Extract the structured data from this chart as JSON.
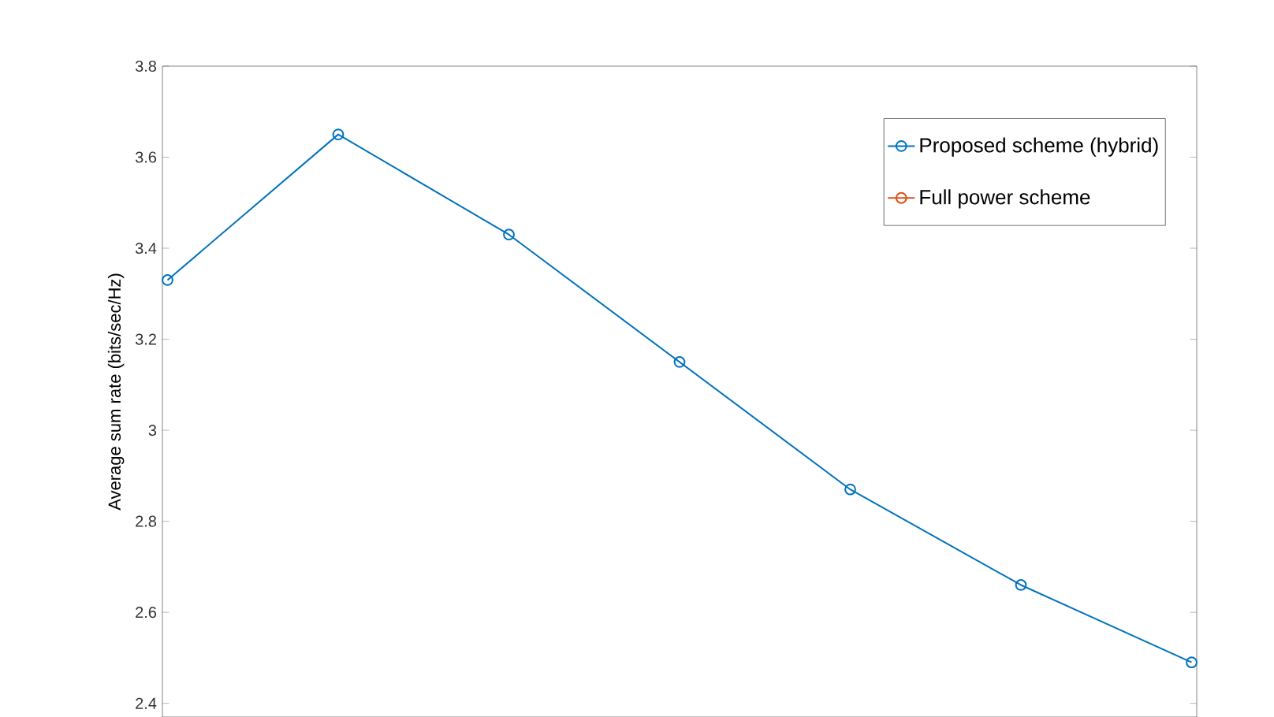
{
  "chart_data": {
    "type": "line",
    "ylabel": "Average sum rate (bits/sec/Hz)",
    "categories": [
      null,
      null,
      null,
      null,
      null,
      null,
      null
    ],
    "series": [
      {
        "name": "Proposed scheme (hybrid)",
        "color": "#0072bd",
        "values": [
          3.33,
          3.65,
          3.43,
          3.15,
          2.87,
          2.66,
          2.49
        ]
      },
      {
        "name": "Full power scheme",
        "color": "#d95319",
        "values": [
          null,
          null,
          null,
          null,
          null,
          null,
          null
        ]
      }
    ],
    "ylim": [
      2.37,
      3.8
    ],
    "yticks": [
      2.4,
      2.6,
      2.8,
      3,
      3.2,
      3.4,
      3.6,
      3.8
    ],
    "tick_labels": "y",
    "marker": "circle",
    "line_style": "solid",
    "legend": "top right"
  }
}
